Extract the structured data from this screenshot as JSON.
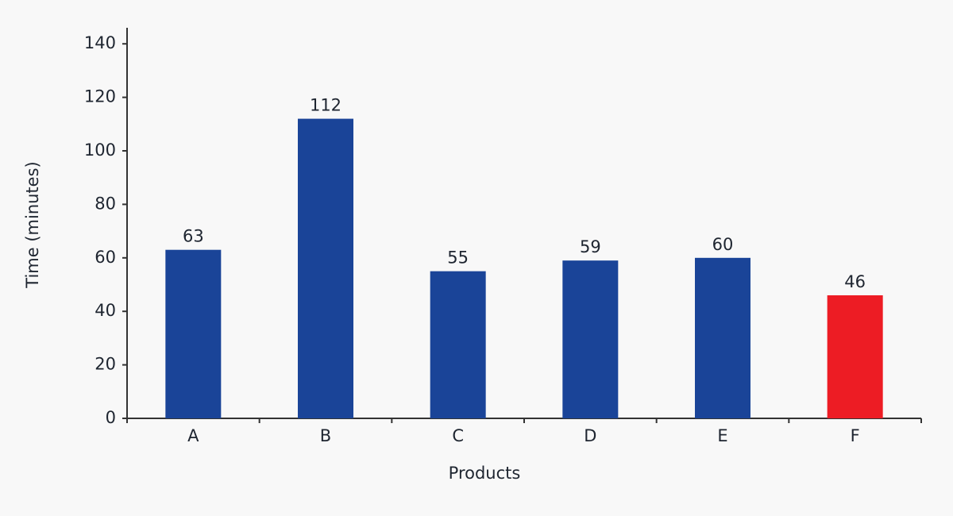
{
  "chart_data": {
    "type": "bar",
    "x_label": "Products",
    "y_label": "Time (minutes)",
    "categories": [
      "A",
      "B",
      "C",
      "D",
      "E",
      "F"
    ],
    "values": [
      63,
      112,
      55,
      59,
      60,
      46
    ],
    "colors": [
      "#1a4498",
      "#1a4498",
      "#1a4498",
      "#1a4498",
      "#1a4498",
      "#ed1c24"
    ],
    "ylim": [
      0,
      146
    ],
    "yticks": [
      0,
      20,
      40,
      60,
      80,
      100,
      120,
      140
    ],
    "grid": false
  }
}
